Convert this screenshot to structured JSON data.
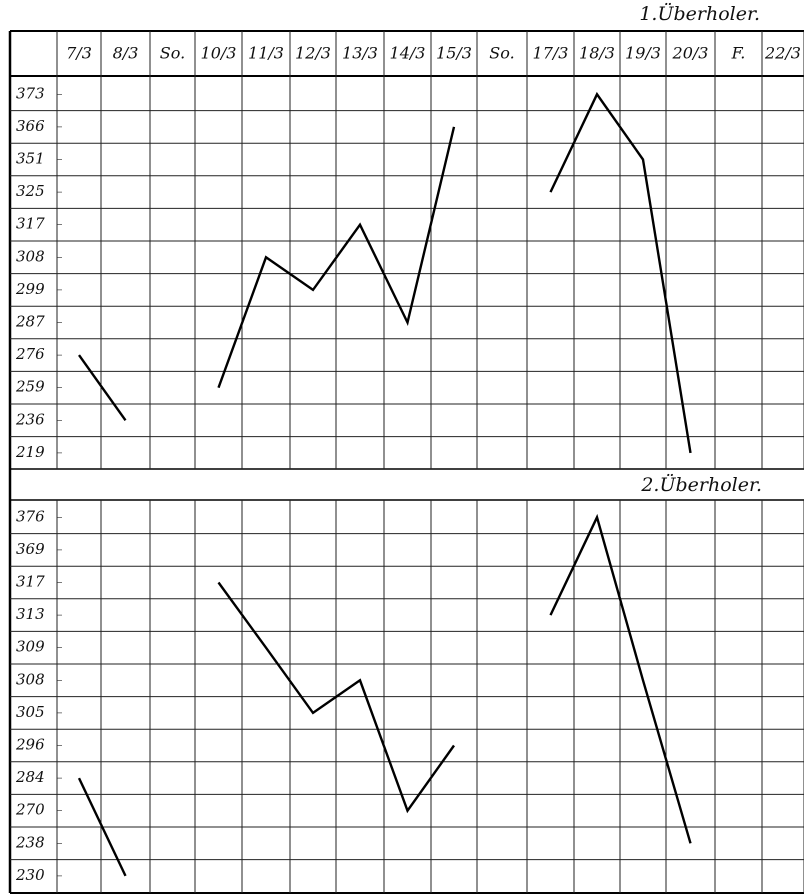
{
  "chart_data": [
    {
      "type": "line",
      "title": "1.Überholer.",
      "categories": [
        "7/3",
        "8/3",
        "So.",
        "10/3",
        "11/3",
        "12/3",
        "13/3",
        "14/3",
        "15/3",
        "So.",
        "17/3",
        "18/3",
        "19/3",
        "20/3",
        "F.",
        "22/3"
      ],
      "values": [
        276,
        236,
        null,
        259,
        308,
        299,
        317,
        287,
        366,
        null,
        325,
        373,
        351,
        219,
        null,
        null
      ],
      "yticks": [
        373,
        366,
        351,
        325,
        317,
        308,
        299,
        287,
        276,
        259,
        236,
        219
      ],
      "color": "#000000",
      "grid": true
    },
    {
      "type": "line",
      "title": "2.Überholer.",
      "values": [
        284,
        230,
        null,
        317,
        309,
        305,
        308,
        270,
        296,
        null,
        313,
        376,
        308,
        238,
        null,
        null
      ],
      "yticks": [
        376,
        369,
        317,
        313,
        309,
        308,
        305,
        296,
        284,
        270,
        238,
        230
      ],
      "color": "#000000",
      "grid": true
    }
  ]
}
